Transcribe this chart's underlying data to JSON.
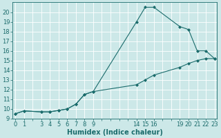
{
  "background_color": "#cce8e8",
  "grid_color": "#ffffff",
  "line_color": "#1a6b6b",
  "marker_color": "#1a6b6b",
  "xlabel": "Humidex (Indice chaleur)",
  "xlabel_fontsize": 7,
  "tick_fontsize": 6,
  "xlim": [
    0,
    23
  ],
  "ylim": [
    9,
    21
  ],
  "xtick_positions": [
    0,
    1,
    2,
    3,
    4,
    5,
    6,
    7,
    8,
    9,
    10,
    11,
    12,
    13,
    14,
    15,
    16,
    17,
    18,
    19,
    20,
    21,
    22,
    23
  ],
  "xtick_labels": [
    "0",
    "1",
    "",
    "3",
    "4",
    "5",
    "6",
    "7",
    "8",
    "9",
    "",
    "",
    "",
    "",
    "14",
    "15",
    "16",
    "",
    "",
    "19",
    "20",
    "21",
    "22",
    "23"
  ],
  "ytick_positions": [
    9,
    10,
    11,
    12,
    13,
    14,
    15,
    16,
    17,
    18,
    19,
    20
  ],
  "ytick_labels": [
    "9",
    "10",
    "11",
    "12",
    "13",
    "14",
    "15",
    "16",
    "17",
    "18",
    "19",
    "20"
  ],
  "upper_x": [
    0,
    1,
    3,
    4,
    5,
    6,
    7,
    8,
    9,
    14,
    15,
    16,
    19,
    20,
    21,
    22,
    23
  ],
  "upper_y": [
    9.5,
    9.8,
    9.7,
    9.7,
    9.85,
    10.0,
    10.5,
    11.5,
    11.8,
    19.0,
    20.5,
    20.5,
    18.5,
    18.2,
    16.0,
    16.0,
    15.2
  ],
  "lower_x": [
    0,
    1,
    3,
    4,
    5,
    6,
    7,
    8,
    9,
    14,
    15,
    16,
    19,
    20,
    21,
    22,
    23
  ],
  "lower_y": [
    9.5,
    9.8,
    9.7,
    9.7,
    9.85,
    10.0,
    10.5,
    11.5,
    11.8,
    12.5,
    13.0,
    13.5,
    14.3,
    14.7,
    15.0,
    15.2,
    15.2
  ]
}
